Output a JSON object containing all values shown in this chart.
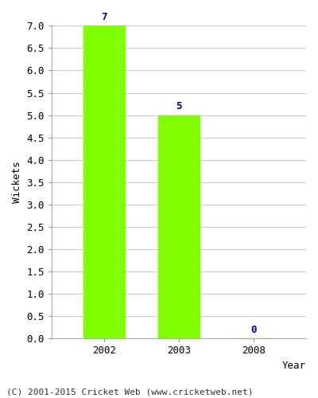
{
  "categories": [
    "2002",
    "2003",
    "2008"
  ],
  "values": [
    7,
    5,
    0
  ],
  "bar_color": "#7fff00",
  "bar_width": 0.55,
  "ylabel": "Wickets",
  "xlabel": "Year",
  "ylim": [
    0,
    7.0
  ],
  "yticks": [
    0.0,
    0.5,
    1.0,
    1.5,
    2.0,
    2.5,
    3.0,
    3.5,
    4.0,
    4.5,
    5.0,
    5.5,
    6.0,
    6.5,
    7.0
  ],
  "annotation_color": "#00008b",
  "annotation_fontsize": 9,
  "axis_label_fontsize": 9,
  "tick_fontsize": 9,
  "footer_text": "(C) 2001-2015 Cricket Web (www.cricketweb.net)",
  "footer_fontsize": 8,
  "background_color": "#ffffff",
  "grid_color": "#cccccc",
  "title": ""
}
